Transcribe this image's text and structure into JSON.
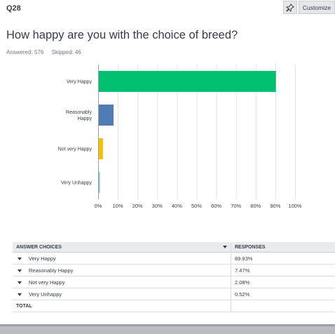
{
  "header": {
    "question_number": "Q28",
    "customize_label": "Customize",
    "pin_icon": "pin-icon"
  },
  "question": {
    "title": "How happy are you with the choice of breed?",
    "answered_label": "Answered: 576",
    "skipped_label": "Skipped: 46"
  },
  "chart_data": {
    "type": "bar",
    "orientation": "horizontal",
    "categories": [
      [
        "Very Happy"
      ],
      [
        "Reasonably",
        "Happy"
      ],
      [
        "Not very Happy"
      ],
      [
        "Very Unhappy"
      ]
    ],
    "values": [
      89.93,
      7.47,
      2.08,
      0.52
    ],
    "colors": [
      "#00bf6f",
      "#507cb6",
      "#f9be00",
      "#6bc8cd"
    ],
    "xlim": [
      0,
      100
    ],
    "xticks": [
      "0%",
      "10%",
      "20%",
      "30%",
      "40%",
      "50%",
      "60%",
      "70%",
      "80%",
      "90%",
      "100%"
    ],
    "grid": true
  },
  "table": {
    "headers": {
      "choice": "ANSWER CHOICES",
      "responses": "RESPONSES"
    },
    "rows": [
      {
        "choice": "Very Happy",
        "response": "89.93%"
      },
      {
        "choice": "Reasonably Happy",
        "response": "7.47%"
      },
      {
        "choice": "Not very Happy",
        "response": "2.08%"
      },
      {
        "choice": "Very Unhappy",
        "response": "0.52%"
      }
    ],
    "total_label": "TOTAL"
  }
}
